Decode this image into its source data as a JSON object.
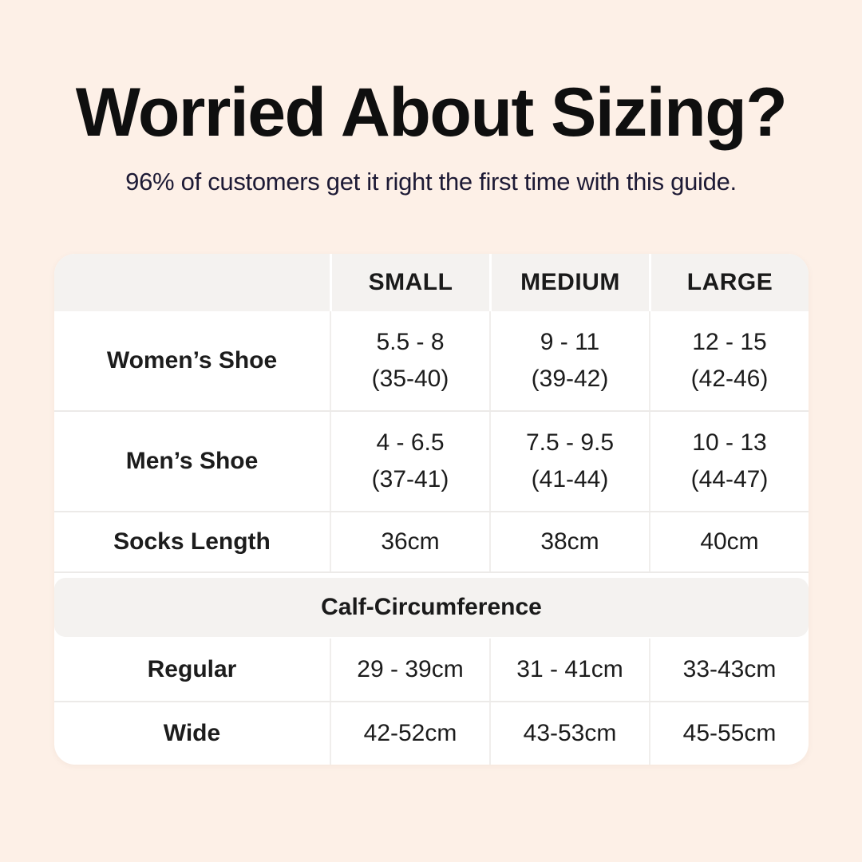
{
  "page": {
    "background_color": "#fdf0e7",
    "card_color": "#ffffff",
    "band_color": "#f4f2f0",
    "subtitle_color": "#1d1a35"
  },
  "header": {
    "title": "Worried About Sizing?",
    "subtitle": "96% of customers get it right the first time with this guide."
  },
  "table": {
    "column_headers": [
      "",
      "SMALL",
      "MEDIUM",
      "LARGE"
    ],
    "shoe_rows": [
      {
        "label": "Women’s Shoe",
        "small": [
          "5.5 - 8",
          "(35-40)"
        ],
        "medium": [
          "9 - 11",
          "(39-42)"
        ],
        "large": [
          "12 - 15",
          "(42-46)"
        ]
      },
      {
        "label": "Men’s Shoe",
        "small": [
          "4 - 6.5",
          "(37-41)"
        ],
        "medium": [
          "7.5 - 9.5",
          "(41-44)"
        ],
        "large": [
          "10 - 13",
          "(44-47)"
        ]
      }
    ],
    "socks_row": {
      "label": "Socks Length",
      "small": "36cm",
      "medium": "38cm",
      "large": "40cm"
    },
    "section_header": "Calf-Circumference",
    "calf_rows": [
      {
        "label": "Regular",
        "small": "29 - 39cm",
        "medium": "31 - 41cm",
        "large": "33-43cm"
      },
      {
        "label": "Wide",
        "small": "42-52cm",
        "medium": "43-53cm",
        "large": "45-55cm"
      }
    ]
  }
}
